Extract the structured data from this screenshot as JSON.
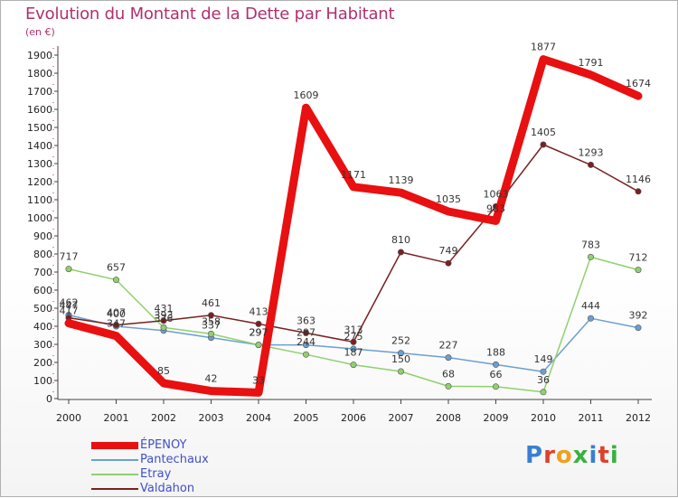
{
  "title": "Evolution du Montant de la Dette par Habitant",
  "subtitle": "(en €)",
  "logo": {
    "text": "Proxiti",
    "letter_colors": [
      "#3a7fd0",
      "#e0402a",
      "#f0a020",
      "#3ab040",
      "#3a7fd0",
      "#e0402a",
      "#3ab040"
    ]
  },
  "chart_data": {
    "type": "line",
    "x": [
      "2000",
      "2001",
      "2002",
      "2003",
      "2004",
      "2005",
      "2006",
      "2007",
      "2008",
      "2009",
      "2010",
      "2011",
      "2012"
    ],
    "ylim": [
      0,
      1900
    ],
    "yticks": [
      0,
      100,
      200,
      300,
      400,
      500,
      600,
      700,
      800,
      900,
      1000,
      1100,
      1200,
      1300,
      1400,
      1500,
      1600,
      1700,
      1800,
      1900
    ],
    "grid": false,
    "legend_position": "bottom-left",
    "series": [
      {
        "name": "ÉPENOY",
        "color": "#e81010",
        "values": [
          417,
          347,
          85,
          42,
          33,
          1609,
          1171,
          1139,
          1035,
          983,
          1877,
          1791,
          1674
        ]
      },
      {
        "name": "Pantechaux",
        "color": "#6aa0d0",
        "values": [
          462,
          400,
          376,
          337,
          297,
          297,
          275,
          252,
          227,
          188,
          149,
          444,
          392
        ]
      },
      {
        "name": "Etray",
        "color": "#90d070",
        "values": [
          717,
          657,
          393,
          358,
          297,
          244,
          187,
          150,
          68,
          66,
          36,
          783,
          712
        ]
      },
      {
        "name": "Valdahon",
        "color": "#7a2020",
        "values": [
          447,
          407,
          431,
          461,
          413,
          363,
          313,
          810,
          749,
          1063,
          1405,
          1293,
          1146
        ]
      }
    ]
  }
}
